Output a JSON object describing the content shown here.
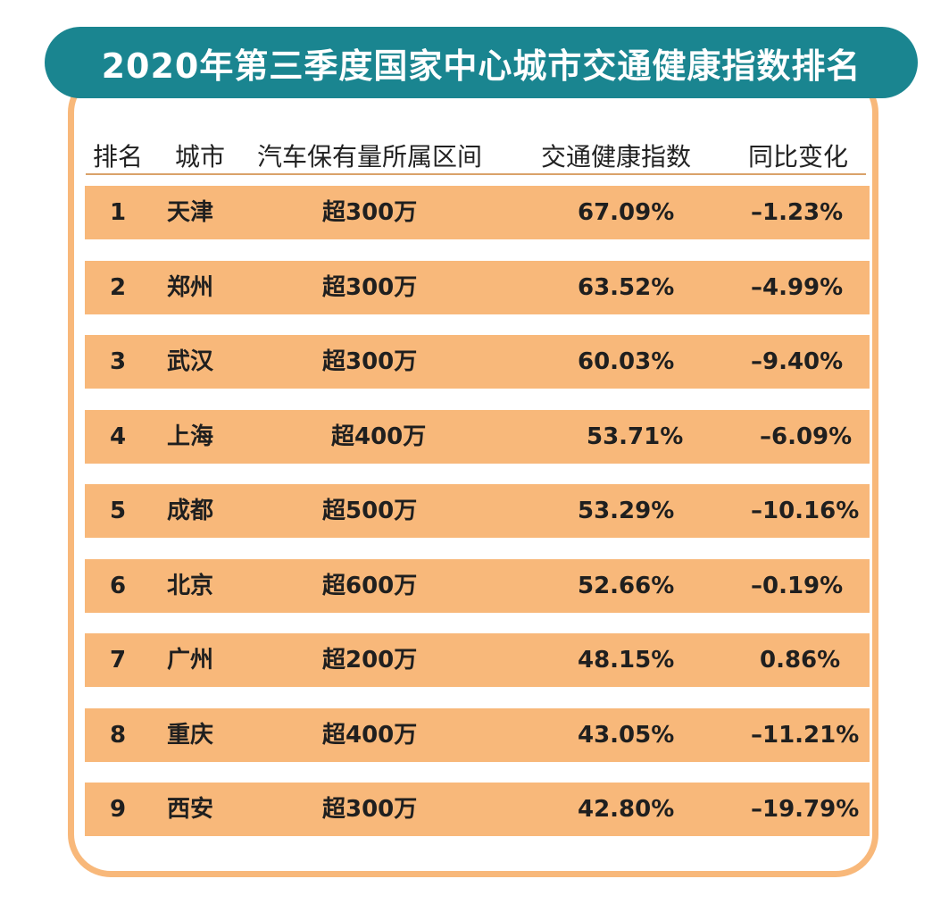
{
  "title": "2020年第三季度国家中心城市交通健康指数排名",
  "headers": {
    "rank": "排名",
    "city": "城市",
    "range": "汽车保有量所属区间",
    "index": "交通健康指数",
    "yoy": "同比变化"
  },
  "rows": [
    {
      "rank": "1",
      "city": "天津",
      "range": "超300万",
      "index": "67.09%",
      "yoy": "–1.23%"
    },
    {
      "rank": "2",
      "city": "郑州",
      "range": "超300万",
      "index": "63.52%",
      "yoy": "–4.99%"
    },
    {
      "rank": "3",
      "city": "武汉",
      "range": "超300万",
      "index": "60.03%",
      "yoy": "–9.40%"
    },
    {
      "rank": "4",
      "city": "上海",
      "range": "超400万",
      "index": "53.71%",
      "yoy": "–6.09%"
    },
    {
      "rank": "5",
      "city": "成都",
      "range": "超500万",
      "index": "53.29%",
      "yoy": "–10.16%"
    },
    {
      "rank": "6",
      "city": "北京",
      "range": "超600万",
      "index": "52.66%",
      "yoy": "–0.19%"
    },
    {
      "rank": "7",
      "city": "广州",
      "range": "超200万",
      "index": "48.15%",
      "yoy": "0.86%"
    },
    {
      "rank": "8",
      "city": "重庆",
      "range": "超400万",
      "index": "43.05%",
      "yoy": "–11.21%"
    },
    {
      "rank": "9",
      "city": "西安",
      "range": "超300万",
      "index": "42.80%",
      "yoy": "–19.79%"
    }
  ],
  "colors": {
    "banner": "#1a8590",
    "row_fill": "#f8b87a",
    "frame_border": "#f8b87a",
    "text": "#1f1f1f"
  }
}
